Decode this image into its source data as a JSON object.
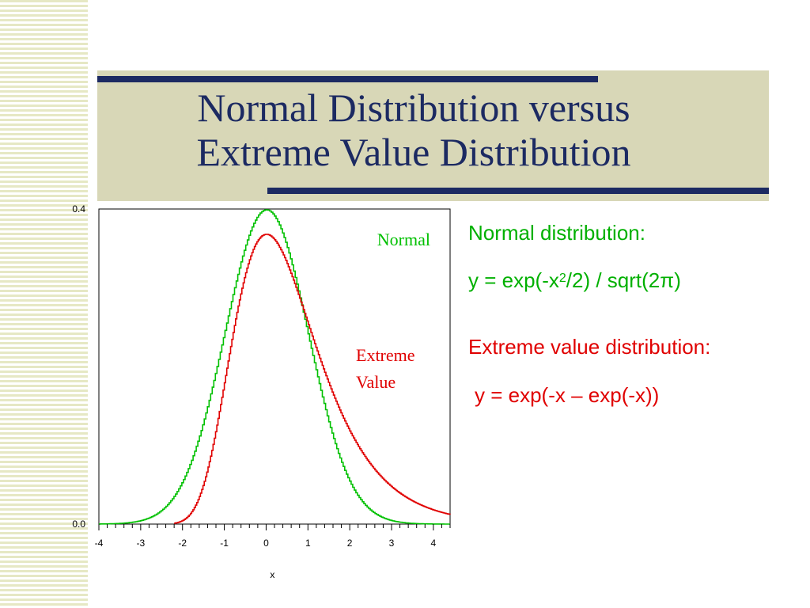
{
  "slide": {
    "title_line1": "Normal Distribution versus",
    "title_line2": "Extreme Value Distribution"
  },
  "side": {
    "normal_heading": "Normal distribution:",
    "normal_formula_a": "y = exp(-x",
    "normal_formula_sup": "2",
    "normal_formula_b": "/2) / sqrt(2π)",
    "extreme_heading": "Extreme value distribution:",
    "extreme_formula": "y = exp(-x – exp(-x))"
  },
  "colors": {
    "normal": "#00c000",
    "extreme": "#e00000",
    "title": "#1c2a62",
    "band": "#d8d7b7"
  },
  "chart_data": {
    "type": "line",
    "xlabel": "x",
    "ylabel": "",
    "xlim": [
      -4,
      4.4
    ],
    "ylim": [
      0,
      0.4
    ],
    "x_ticks": [
      "-4",
      "-3",
      "-2",
      "-1",
      "0",
      "1",
      "2",
      "3",
      "4"
    ],
    "y_ticks": [
      "0.0",
      "0.4"
    ],
    "grid": false,
    "series": [
      {
        "name": "Normal",
        "x": [
          -4,
          -3.5,
          -3,
          -2.5,
          -2,
          -1.5,
          -1,
          -0.5,
          0,
          0.5,
          1,
          1.5,
          2,
          2.5,
          3,
          3.5,
          4,
          4.4
        ],
        "y": [
          0.0001,
          0.0009,
          0.0044,
          0.0175,
          0.054,
          0.1295,
          0.242,
          0.3521,
          0.3989,
          0.3521,
          0.242,
          0.1295,
          0.054,
          0.0175,
          0.0044,
          0.0009,
          0.0001,
          0.0
        ]
      },
      {
        "name": "Extreme Value",
        "x": [
          -2,
          -1.5,
          -1,
          -0.5,
          0,
          0.5,
          1,
          1.5,
          2,
          2.5,
          3,
          3.5,
          4,
          4.4
        ],
        "y": [
          0.0005,
          0.0418,
          0.1794,
          0.317,
          0.3679,
          0.3307,
          0.2546,
          0.1794,
          0.1182,
          0.0752,
          0.0474,
          0.029,
          0.018,
          0.012
        ]
      }
    ],
    "annotations": [
      "Normal",
      "Extreme",
      "Value"
    ]
  }
}
